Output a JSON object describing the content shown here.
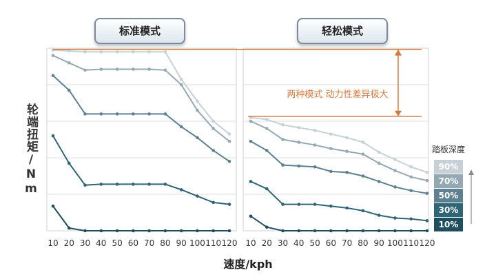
{
  "modes": {
    "left": "标准模式",
    "right": "轻松模式"
  },
  "legend": {
    "title": "踏板深度",
    "items": [
      {
        "label": "90%",
        "color": "#c7d0d6"
      },
      {
        "label": "70%",
        "color": "#94a8b4"
      },
      {
        "label": "50%",
        "color": "#5d8190"
      },
      {
        "label": "30%",
        "color": "#2f6576"
      },
      {
        "label": "10%",
        "color": "#1f4f5f"
      }
    ]
  },
  "annotation": {
    "text": "两种模式 动力性差异极大",
    "color": "#d47a3e"
  },
  "chart_data": {
    "type": "line",
    "xlabel": "速度/kph",
    "ylabel": "轮端扭矩/Nm",
    "x": [
      10,
      20,
      30,
      40,
      50,
      60,
      70,
      80,
      90,
      100,
      110,
      120
    ],
    "ylim": [
      0,
      100
    ],
    "grid": true,
    "panels": [
      {
        "title": "标准模式",
        "series": [
          {
            "name": "90%",
            "color": "#c7d0d6",
            "values": [
              99,
              98.5,
              98,
              98,
              98,
              98,
              98,
              98,
              83,
              71,
              60,
              53
            ]
          },
          {
            "name": "70%",
            "color": "#94a8b4",
            "values": [
              96,
              92,
              88,
              88.5,
              88.5,
              88.5,
              88.5,
              88,
              80,
              66,
              56,
              49
            ]
          },
          {
            "name": "50%",
            "color": "#5d8190",
            "values": [
              85,
              77,
              64,
              64,
              64,
              64,
              64,
              64,
              57,
              51,
              44,
              38
            ]
          },
          {
            "name": "30%",
            "color": "#2f6576",
            "values": [
              52,
              37,
              25,
              25.5,
              25.5,
              25.5,
              25.5,
              25.5,
              22.5,
              19,
              15.5,
              14.5
            ]
          },
          {
            "name": "10%",
            "color": "#1f4f5f",
            "values": [
              13.5,
              1.5,
              0,
              0,
              0,
              0,
              0,
              0,
              0,
              0,
              0,
              0
            ]
          }
        ]
      },
      {
        "title": "轻松模式",
        "series": [
          {
            "name": "90%",
            "color": "#c7d0d6",
            "values": [
              62,
              61,
              58,
              56.5,
              55,
              53,
              51,
              48.5,
              43,
              39,
              35,
              32
            ]
          },
          {
            "name": "70%",
            "color": "#94a8b4",
            "values": [
              60,
              56,
              50,
              48.5,
              47,
              45,
              43.5,
              42,
              37,
              33,
              29.5,
              27.5
            ]
          },
          {
            "name": "50%",
            "color": "#5d8190",
            "values": [
              49,
              44,
              36,
              35.5,
              35,
              32.5,
              32,
              30,
              27,
              24,
              22,
              20.5
            ]
          },
          {
            "name": "30%",
            "color": "#2f6576",
            "values": [
              27,
              23,
              14.5,
              14.5,
              14.5,
              13.5,
              12.5,
              11,
              8.5,
              7,
              6.5,
              5.5
            ]
          },
          {
            "name": "10%",
            "color": "#1f4f5f",
            "values": [
              8,
              2,
              0,
              0,
              0,
              0,
              0,
              0,
              0,
              0,
              0,
              0
            ]
          }
        ]
      }
    ]
  }
}
